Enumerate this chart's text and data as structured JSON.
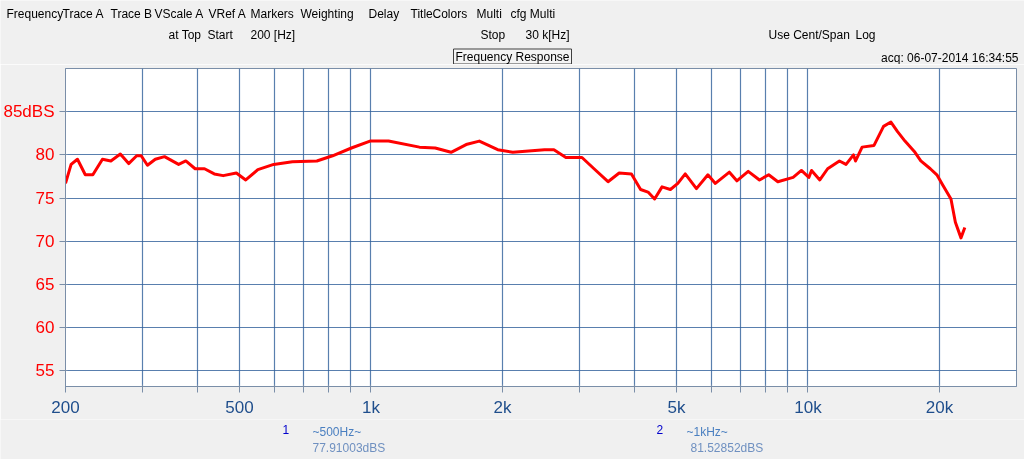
{
  "chart_data": {
    "type": "line",
    "title": "Frequency Response",
    "log": "x",
    "grid": true,
    "xlim": [
      200,
      30000
    ],
    "ylim": [
      53.2,
      90
    ],
    "xticks": [
      {
        "value": 200,
        "label": "200"
      },
      {
        "value": 300,
        "label": null
      },
      {
        "value": 400,
        "label": null
      },
      {
        "value": 500,
        "label": "500"
      },
      {
        "value": 600,
        "label": null
      },
      {
        "value": 700,
        "label": null
      },
      {
        "value": 800,
        "label": null
      },
      {
        "value": 900,
        "label": null
      },
      {
        "value": 1000,
        "label": "1k"
      },
      {
        "value": 2000,
        "label": "2k"
      },
      {
        "value": 3000,
        "label": null
      },
      {
        "value": 4000,
        "label": null
      },
      {
        "value": 5000,
        "label": "5k"
      },
      {
        "value": 6000,
        "label": null
      },
      {
        "value": 7000,
        "label": null
      },
      {
        "value": 8000,
        "label": null
      },
      {
        "value": 9000,
        "label": null
      },
      {
        "value": 10000,
        "label": "10k"
      },
      {
        "value": 20000,
        "label": "20k"
      }
    ],
    "yticks": [
      55,
      60,
      65,
      70,
      75,
      80,
      {
        "value": 85,
        "label": "85dBS"
      }
    ],
    "annotations": [
      "Frequency",
      "Trace A",
      "Trace B",
      "VScale A",
      "VRef A",
      "Markers",
      "Weighting",
      "Delay",
      "Title",
      "Colors",
      "Multi",
      "cfg Multi",
      "at Top",
      "Start",
      "200 [Hz]",
      "Stop",
      "30 k[Hz]",
      "Use Cent/Span",
      "Log",
      "acq: 06-07-2014 16:34:55",
      "1",
      "~500Hz~",
      "77.91003dBS",
      "2",
      "~1kHz~",
      "81.52852dBS"
    ],
    "series": [
      {
        "color": "#ff0000",
        "x": [
          200,
          206,
          213,
          222,
          231,
          243,
          254,
          267,
          279,
          291,
          298,
          308,
          321,
          337,
          363,
          377,
          396,
          416,
          438,
          459,
          492,
          517,
          551,
          599,
          661,
          752,
          817,
          902,
          995,
          1097,
          1291,
          1403,
          1525,
          1651,
          1770,
          1950,
          2111,
          2495,
          2622,
          2793,
          3040,
          3239,
          3487,
          3698,
          3945,
          4140,
          4305,
          4457,
          4635,
          4844,
          5037,
          5238,
          5556,
          5902,
          6138,
          6609,
          6874,
          7298,
          7745,
          8130,
          8532,
          9247,
          9660,
          10045,
          10190,
          10643,
          11090,
          11800,
          12220,
          12710,
          12850,
          13300,
          14160,
          14890,
          15480,
          16030,
          16670,
          17510,
          18120,
          19050,
          19720,
          20290,
          21240,
          21740,
          22390,
          22850
        ],
        "values": [
          76.7,
          78.9,
          79.5,
          77.7,
          77.7,
          79.5,
          79.3,
          80.1,
          79.0,
          79.9,
          79.9,
          78.8,
          79.5,
          79.8,
          78.9,
          79.3,
          78.4,
          78.4,
          77.8,
          77.6,
          77.9,
          77.1,
          78.3,
          78.9,
          79.2,
          79.3,
          79.9,
          80.8,
          81.6,
          81.6,
          80.9,
          80.8,
          80.3,
          81.2,
          81.6,
          80.6,
          80.3,
          80.6,
          80.6,
          79.7,
          79.7,
          78.4,
          76.9,
          77.9,
          77.8,
          76.0,
          75.7,
          74.9,
          76.3,
          76.0,
          76.7,
          77.8,
          76.1,
          77.7,
          76.7,
          78.0,
          77.0,
          78.1,
          77.1,
          77.7,
          76.9,
          77.4,
          78.2,
          77.4,
          78.2,
          77.1,
          78.4,
          79.3,
          78.9,
          80.0,
          79.3,
          80.9,
          81.1,
          83.3,
          83.8,
          82.7,
          81.6,
          80.4,
          79.3,
          78.4,
          77.7,
          76.6,
          74.9,
          72.2,
          70.4,
          71.6
        ]
      }
    ]
  }
}
